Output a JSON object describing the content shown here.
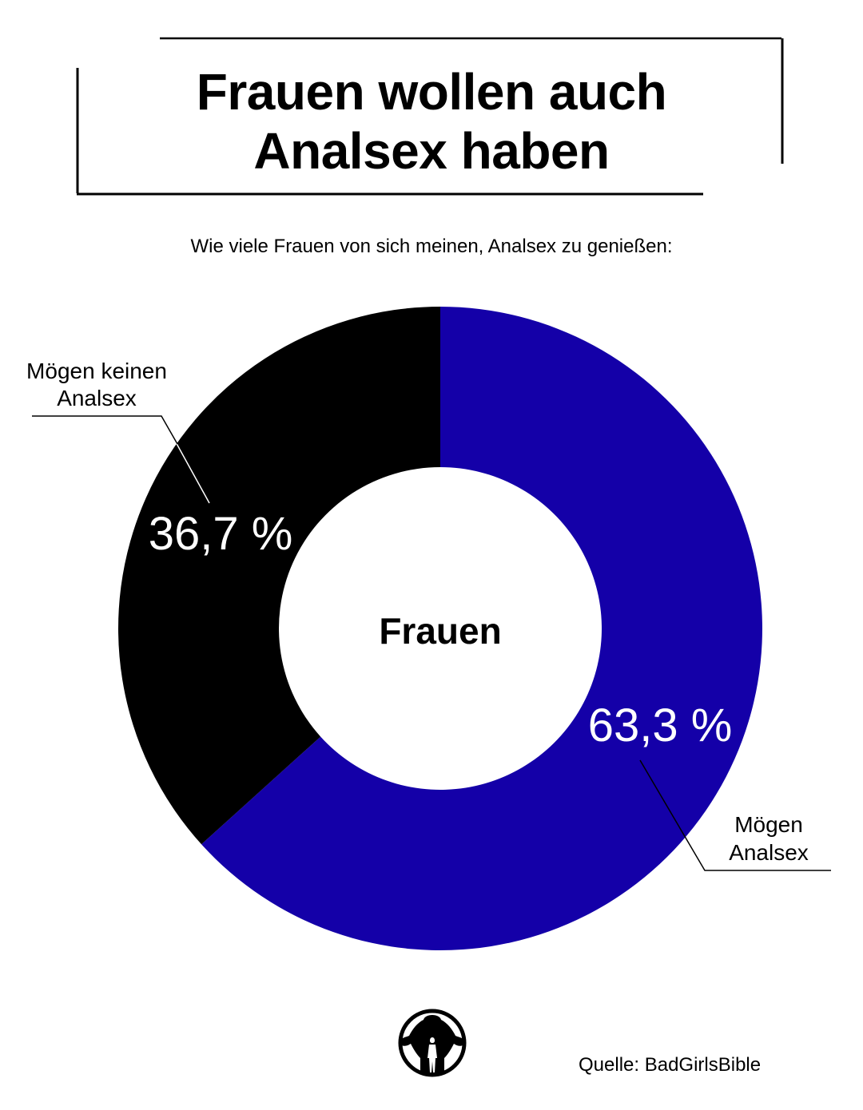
{
  "title": {
    "line1": "Frauen wollen auch",
    "line2": "Analsex haben"
  },
  "subtitle": "Wie viele Frauen von sich meinen, Analsex zu genießen:",
  "source": "Quelle: BadGirlsBible",
  "chart_data": {
    "type": "pie",
    "variant": "donut",
    "center_label": "Frauen",
    "slices": [
      {
        "label_lines": [
          "Mögen",
          "Analsex"
        ],
        "value": 63.3,
        "value_label": "63,3 %",
        "color": "#1400a8"
      },
      {
        "label_lines": [
          "Mögen keinen",
          "Analsex"
        ],
        "value": 36.7,
        "value_label": "36,7 %",
        "color": "#000000"
      }
    ]
  },
  "logo": {
    "icon": "gorilla-silhouette-logo"
  }
}
